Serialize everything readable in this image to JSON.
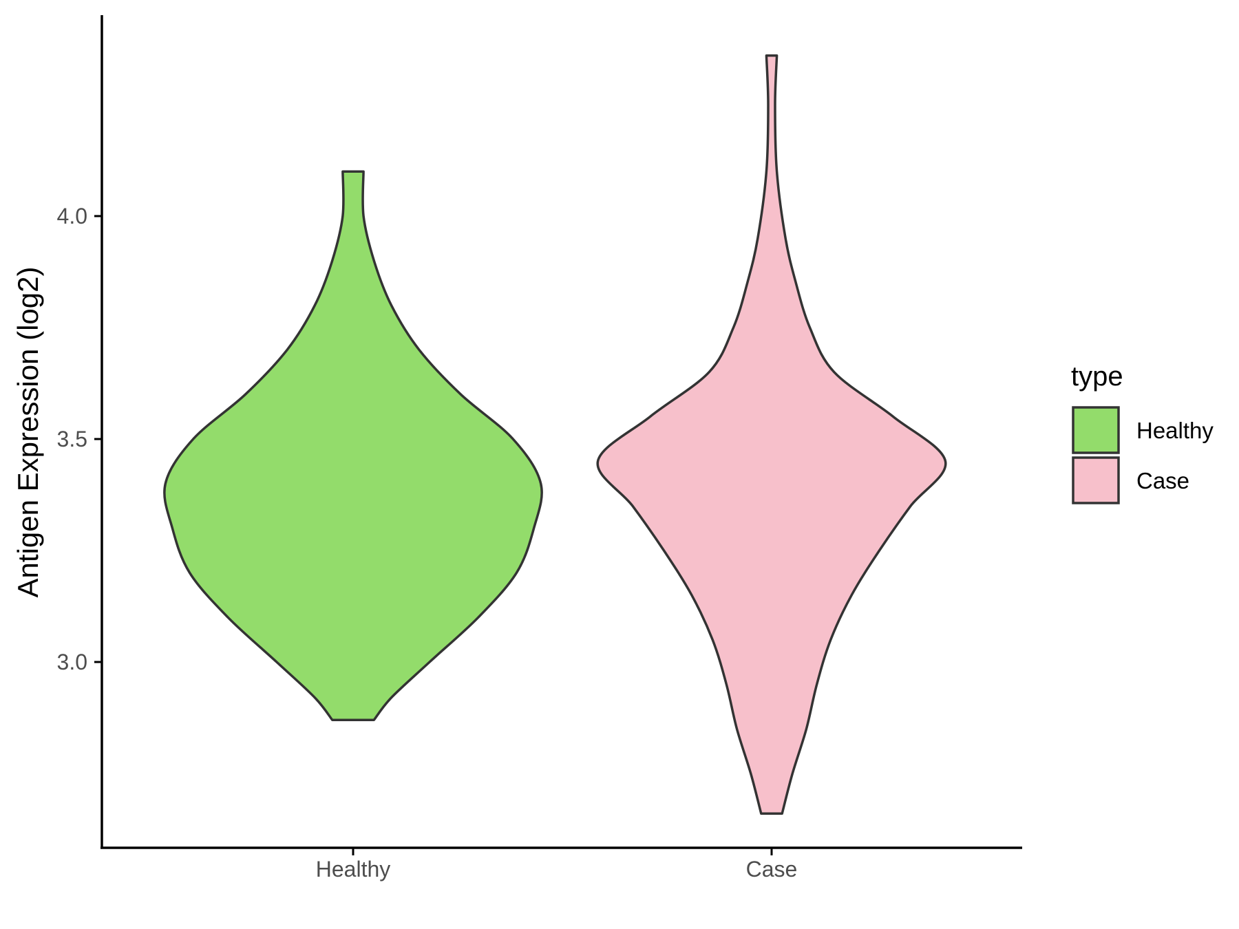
{
  "chart_data": {
    "type": "violin",
    "title": "",
    "xlabel": "",
    "ylabel": "Antigen Expression (log2)",
    "categories": [
      "Healthy",
      "Case"
    ],
    "ylim": [
      2.58,
      4.44
    ],
    "yticks": [
      3.0,
      3.5,
      4.0
    ],
    "ytick_labels": [
      "3.0",
      "3.5",
      "4.0"
    ],
    "grid": false,
    "legend": {
      "title": "type",
      "position": "right",
      "entries": [
        {
          "label": "Healthy",
          "color": "#93DC6B"
        },
        {
          "label": "Case",
          "color": "#F7C0CB"
        }
      ]
    },
    "series": [
      {
        "category": "Healthy",
        "color": "#93DC6B",
        "min": 2.87,
        "max": 4.1,
        "density_profile": [
          {
            "y": 2.87,
            "halfwidth": 0.06
          },
          {
            "y": 2.92,
            "halfwidth": 0.11
          },
          {
            "y": 3.0,
            "halfwidth": 0.22
          },
          {
            "y": 3.1,
            "halfwidth": 0.36
          },
          {
            "y": 3.2,
            "halfwidth": 0.47
          },
          {
            "y": 3.3,
            "halfwidth": 0.52
          },
          {
            "y": 3.4,
            "halfwidth": 0.54
          },
          {
            "y": 3.5,
            "halfwidth": 0.46
          },
          {
            "y": 3.6,
            "halfwidth": 0.31
          },
          {
            "y": 3.7,
            "halfwidth": 0.19
          },
          {
            "y": 3.8,
            "halfwidth": 0.11
          },
          {
            "y": 3.9,
            "halfwidth": 0.06
          },
          {
            "y": 4.0,
            "halfwidth": 0.03
          },
          {
            "y": 4.1,
            "halfwidth": 0.03
          }
        ]
      },
      {
        "category": "Case",
        "color": "#F7C0CB",
        "min": 2.66,
        "max": 4.36,
        "density_profile": [
          {
            "y": 2.66,
            "halfwidth": 0.03
          },
          {
            "y": 2.75,
            "halfwidth": 0.06
          },
          {
            "y": 2.85,
            "halfwidth": 0.1
          },
          {
            "y": 2.95,
            "halfwidth": 0.13
          },
          {
            "y": 3.05,
            "halfwidth": 0.17
          },
          {
            "y": 3.15,
            "halfwidth": 0.23
          },
          {
            "y": 3.25,
            "halfwidth": 0.31
          },
          {
            "y": 3.35,
            "halfwidth": 0.4
          },
          {
            "y": 3.45,
            "halfwidth": 0.5
          },
          {
            "y": 3.55,
            "halfwidth": 0.35
          },
          {
            "y": 3.65,
            "halfwidth": 0.18
          },
          {
            "y": 3.75,
            "halfwidth": 0.11
          },
          {
            "y": 3.85,
            "halfwidth": 0.07
          },
          {
            "y": 3.95,
            "halfwidth": 0.04
          },
          {
            "y": 4.1,
            "halfwidth": 0.015
          },
          {
            "y": 4.25,
            "halfwidth": 0.01
          },
          {
            "y": 4.36,
            "halfwidth": 0.015
          }
        ]
      }
    ]
  }
}
